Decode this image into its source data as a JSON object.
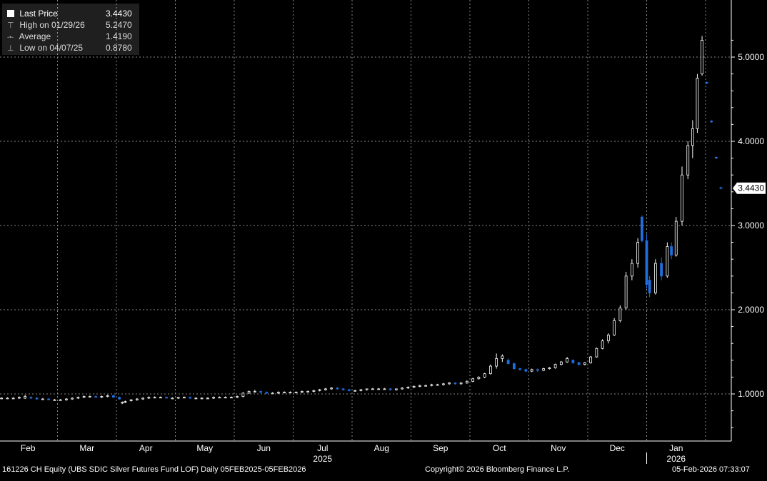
{
  "colors": {
    "background": "#000000",
    "grid": "#8a8a8a",
    "up_candle": "#ffffff",
    "down_candle": "#1f6fe0",
    "text": "#ffffff"
  },
  "legend": {
    "items": [
      {
        "label": "Last Price",
        "value": "3.4430",
        "icon": "filled-square-icon"
      },
      {
        "label": "High on 01/29/26",
        "value": "5.2470",
        "icon": "high-marker-icon"
      },
      {
        "label": "Average",
        "value": "1.4190",
        "icon": "average-line-icon"
      },
      {
        "label": "Low on 04/07/25",
        "value": "0.8780",
        "icon": "low-marker-icon"
      }
    ]
  },
  "last_price_tag": "3.4430",
  "footer": {
    "left": "161226 CH Equity (UBS SDIC Silver Futures Fund LOF) Daily 05FEB2025-05FEB2026",
    "center": "Copyright© 2026 Bloomberg Finance L.P.",
    "right": "05-Feb-2026 07:33:07"
  },
  "chart_data": {
    "type": "candlestick",
    "title": "161226 CH Equity (UBS SDIC Silver Futures Fund LOF) Daily",
    "x_range": [
      "2025-02-05",
      "2026-02-05"
    ],
    "y_range": [
      0.5,
      5.5
    ],
    "y_ticks": [
      "1.0000",
      "2.0000",
      "3.0000",
      "4.0000",
      "5.0000"
    ],
    "y_tick_values": [
      1,
      2,
      3,
      4,
      5
    ],
    "x_month_labels": [
      "Feb",
      "Mar",
      "Apr",
      "May",
      "Jun",
      "Jul",
      "Aug",
      "Sep",
      "Oct",
      "Nov",
      "Dec",
      "Jan"
    ],
    "x_month_positions": [
      0.5,
      1.5,
      2.5,
      3.5,
      4.5,
      5.5,
      6.5,
      7.5,
      8.5,
      9.5,
      10.5,
      11.5
    ],
    "x_gridlines": [
      1,
      2,
      3,
      4,
      5,
      6,
      7,
      8,
      9,
      10,
      11,
      12
    ],
    "year_labels": [
      {
        "label": "2025",
        "pos": 5.5
      },
      {
        "label": "2026",
        "pos": 11.5
      }
    ],
    "year_divider": 11,
    "last_price": 3.443,
    "high": 5.247,
    "average": 1.419,
    "low": 0.878,
    "candles": [
      {
        "t": 0.05,
        "o": 0.95,
        "h": 0.96,
        "l": 0.94,
        "c": 0.95
      },
      {
        "t": 0.15,
        "o": 0.95,
        "h": 0.96,
        "l": 0.94,
        "c": 0.95
      },
      {
        "t": 0.25,
        "o": 0.95,
        "h": 0.96,
        "l": 0.94,
        "c": 0.95
      },
      {
        "t": 0.35,
        "o": 0.95,
        "h": 0.97,
        "l": 0.94,
        "c": 0.96
      },
      {
        "t": 0.45,
        "o": 0.95,
        "h": 0.99,
        "l": 0.94,
        "c": 0.97
      },
      {
        "t": 0.55,
        "o": 0.96,
        "h": 0.97,
        "l": 0.94,
        "c": 0.95
      },
      {
        "t": 0.65,
        "o": 0.95,
        "h": 0.96,
        "l": 0.93,
        "c": 0.94
      },
      {
        "t": 0.75,
        "o": 0.94,
        "h": 0.95,
        "l": 0.93,
        "c": 0.94
      },
      {
        "t": 0.85,
        "o": 0.94,
        "h": 0.95,
        "l": 0.93,
        "c": 0.93
      },
      {
        "t": 0.95,
        "o": 0.93,
        "h": 0.94,
        "l": 0.92,
        "c": 0.93
      },
      {
        "t": 1.05,
        "o": 0.93,
        "h": 0.94,
        "l": 0.92,
        "c": 0.93
      },
      {
        "t": 1.15,
        "o": 0.93,
        "h": 0.95,
        "l": 0.92,
        "c": 0.94
      },
      {
        "t": 1.25,
        "o": 0.94,
        "h": 0.96,
        "l": 0.93,
        "c": 0.95
      },
      {
        "t": 1.35,
        "o": 0.95,
        "h": 0.97,
        "l": 0.94,
        "c": 0.96
      },
      {
        "t": 1.45,
        "o": 0.96,
        "h": 0.98,
        "l": 0.95,
        "c": 0.97
      },
      {
        "t": 1.55,
        "o": 0.97,
        "h": 0.98,
        "l": 0.96,
        "c": 0.97
      },
      {
        "t": 1.65,
        "o": 0.97,
        "h": 0.98,
        "l": 0.96,
        "c": 0.96
      },
      {
        "t": 1.75,
        "o": 0.96,
        "h": 0.98,
        "l": 0.95,
        "c": 0.97
      },
      {
        "t": 1.85,
        "o": 0.97,
        "h": 0.99,
        "l": 0.96,
        "c": 0.98
      },
      {
        "t": 1.95,
        "o": 0.98,
        "h": 0.99,
        "l": 0.96,
        "c": 0.96
      },
      {
        "t": 2.05,
        "o": 0.96,
        "h": 0.97,
        "l": 0.93,
        "c": 0.94
      },
      {
        "t": 2.1,
        "o": 0.9,
        "h": 0.91,
        "l": 0.88,
        "c": 0.9
      },
      {
        "t": 2.15,
        "o": 0.9,
        "h": 0.92,
        "l": 0.89,
        "c": 0.91
      },
      {
        "t": 2.25,
        "o": 0.92,
        "h": 0.94,
        "l": 0.91,
        "c": 0.93
      },
      {
        "t": 2.35,
        "o": 0.93,
        "h": 0.95,
        "l": 0.92,
        "c": 0.94
      },
      {
        "t": 2.45,
        "o": 0.94,
        "h": 0.96,
        "l": 0.93,
        "c": 0.95
      },
      {
        "t": 2.55,
        "o": 0.95,
        "h": 0.97,
        "l": 0.94,
        "c": 0.96
      },
      {
        "t": 2.65,
        "o": 0.96,
        "h": 0.97,
        "l": 0.95,
        "c": 0.96
      },
      {
        "t": 2.75,
        "o": 0.96,
        "h": 0.97,
        "l": 0.95,
        "c": 0.96
      },
      {
        "t": 2.85,
        "o": 0.96,
        "h": 0.97,
        "l": 0.95,
        "c": 0.95
      },
      {
        "t": 2.95,
        "o": 0.95,
        "h": 0.96,
        "l": 0.94,
        "c": 0.95
      },
      {
        "t": 3.05,
        "o": 0.95,
        "h": 0.96,
        "l": 0.94,
        "c": 0.96
      },
      {
        "t": 3.15,
        "o": 0.96,
        "h": 0.97,
        "l": 0.95,
        "c": 0.96
      },
      {
        "t": 3.25,
        "o": 0.96,
        "h": 0.97,
        "l": 0.94,
        "c": 0.95
      },
      {
        "t": 3.35,
        "o": 0.95,
        "h": 0.96,
        "l": 0.94,
        "c": 0.95
      },
      {
        "t": 3.45,
        "o": 0.95,
        "h": 0.96,
        "l": 0.94,
        "c": 0.95
      },
      {
        "t": 3.55,
        "o": 0.95,
        "h": 0.96,
        "l": 0.94,
        "c": 0.95
      },
      {
        "t": 3.65,
        "o": 0.95,
        "h": 0.97,
        "l": 0.94,
        "c": 0.96
      },
      {
        "t": 3.75,
        "o": 0.96,
        "h": 0.97,
        "l": 0.95,
        "c": 0.96
      },
      {
        "t": 3.85,
        "o": 0.96,
        "h": 0.97,
        "l": 0.95,
        "c": 0.96
      },
      {
        "t": 3.95,
        "o": 0.96,
        "h": 0.97,
        "l": 0.95,
        "c": 0.96
      },
      {
        "t": 4.05,
        "o": 0.96,
        "h": 0.98,
        "l": 0.95,
        "c": 0.97
      },
      {
        "t": 4.15,
        "o": 0.97,
        "h": 1.02,
        "l": 0.96,
        "c": 1.01
      },
      {
        "t": 4.25,
        "o": 1.01,
        "h": 1.04,
        "l": 1.0,
        "c": 1.03
      },
      {
        "t": 4.35,
        "o": 1.03,
        "h": 1.05,
        "l": 1.02,
        "c": 1.03
      },
      {
        "t": 4.45,
        "o": 1.03,
        "h": 1.04,
        "l": 1.01,
        "c": 1.02
      },
      {
        "t": 4.55,
        "o": 1.02,
        "h": 1.03,
        "l": 1.0,
        "c": 1.01
      },
      {
        "t": 4.65,
        "o": 1.01,
        "h": 1.02,
        "l": 1.0,
        "c": 1.01
      },
      {
        "t": 4.75,
        "o": 1.01,
        "h": 1.03,
        "l": 1.0,
        "c": 1.02
      },
      {
        "t": 4.85,
        "o": 1.02,
        "h": 1.03,
        "l": 1.01,
        "c": 1.02
      },
      {
        "t": 4.95,
        "o": 1.02,
        "h": 1.03,
        "l": 1.01,
        "c": 1.02
      },
      {
        "t": 5.05,
        "o": 1.02,
        "h": 1.03,
        "l": 1.01,
        "c": 1.02
      },
      {
        "t": 5.15,
        "o": 1.02,
        "h": 1.04,
        "l": 1.01,
        "c": 1.03
      },
      {
        "t": 5.25,
        "o": 1.03,
        "h": 1.04,
        "l": 1.02,
        "c": 1.03
      },
      {
        "t": 5.35,
        "o": 1.03,
        "h": 1.05,
        "l": 1.02,
        "c": 1.04
      },
      {
        "t": 5.45,
        "o": 1.04,
        "h": 1.06,
        "l": 1.03,
        "c": 1.05
      },
      {
        "t": 5.55,
        "o": 1.05,
        "h": 1.07,
        "l": 1.04,
        "c": 1.06
      },
      {
        "t": 5.65,
        "o": 1.06,
        "h": 1.08,
        "l": 1.05,
        "c": 1.07
      },
      {
        "t": 5.75,
        "o": 1.07,
        "h": 1.08,
        "l": 1.05,
        "c": 1.06
      },
      {
        "t": 5.85,
        "o": 1.06,
        "h": 1.07,
        "l": 1.04,
        "c": 1.05
      },
      {
        "t": 5.95,
        "o": 1.05,
        "h": 1.06,
        "l": 1.03,
        "c": 1.04
      },
      {
        "t": 6.05,
        "o": 1.04,
        "h": 1.05,
        "l": 1.03,
        "c": 1.04
      },
      {
        "t": 6.15,
        "o": 1.04,
        "h": 1.06,
        "l": 1.03,
        "c": 1.05
      },
      {
        "t": 6.25,
        "o": 1.05,
        "h": 1.06,
        "l": 1.04,
        "c": 1.06
      },
      {
        "t": 6.35,
        "o": 1.06,
        "h": 1.07,
        "l": 1.05,
        "c": 1.06
      },
      {
        "t": 6.45,
        "o": 1.06,
        "h": 1.07,
        "l": 1.05,
        "c": 1.06
      },
      {
        "t": 6.55,
        "o": 1.06,
        "h": 1.07,
        "l": 1.05,
        "c": 1.06
      },
      {
        "t": 6.65,
        "o": 1.06,
        "h": 1.07,
        "l": 1.04,
        "c": 1.05
      },
      {
        "t": 6.75,
        "o": 1.05,
        "h": 1.06,
        "l": 1.04,
        "c": 1.06
      },
      {
        "t": 6.85,
        "o": 1.06,
        "h": 1.08,
        "l": 1.05,
        "c": 1.07
      },
      {
        "t": 6.95,
        "o": 1.07,
        "h": 1.09,
        "l": 1.06,
        "c": 1.08
      },
      {
        "t": 7.05,
        "o": 1.08,
        "h": 1.1,
        "l": 1.07,
        "c": 1.09
      },
      {
        "t": 7.15,
        "o": 1.09,
        "h": 1.11,
        "l": 1.08,
        "c": 1.1
      },
      {
        "t": 7.25,
        "o": 1.1,
        "h": 1.11,
        "l": 1.09,
        "c": 1.1
      },
      {
        "t": 7.35,
        "o": 1.1,
        "h": 1.12,
        "l": 1.09,
        "c": 1.11
      },
      {
        "t": 7.45,
        "o": 1.11,
        "h": 1.12,
        "l": 1.1,
        "c": 1.11
      },
      {
        "t": 7.55,
        "o": 1.11,
        "h": 1.13,
        "l": 1.1,
        "c": 1.12
      },
      {
        "t": 7.65,
        "o": 1.12,
        "h": 1.14,
        "l": 1.11,
        "c": 1.13
      },
      {
        "t": 7.75,
        "o": 1.13,
        "h": 1.14,
        "l": 1.11,
        "c": 1.12
      },
      {
        "t": 7.85,
        "o": 1.12,
        "h": 1.14,
        "l": 1.11,
        "c": 1.13
      },
      {
        "t": 7.95,
        "o": 1.13,
        "h": 1.16,
        "l": 1.12,
        "c": 1.15
      },
      {
        "t": 8.05,
        "o": 1.15,
        "h": 1.19,
        "l": 1.14,
        "c": 1.18
      },
      {
        "t": 8.15,
        "o": 1.18,
        "h": 1.21,
        "l": 1.17,
        "c": 1.2
      },
      {
        "t": 8.25,
        "o": 1.2,
        "h": 1.25,
        "l": 1.19,
        "c": 1.24
      },
      {
        "t": 8.35,
        "o": 1.24,
        "h": 1.35,
        "l": 1.23,
        "c": 1.33
      },
      {
        "t": 8.45,
        "o": 1.33,
        "h": 1.48,
        "l": 1.3,
        "c": 1.42
      },
      {
        "t": 8.55,
        "o": 1.42,
        "h": 1.47,
        "l": 1.38,
        "c": 1.45
      },
      {
        "t": 8.65,
        "o": 1.4,
        "h": 1.42,
        "l": 1.35,
        "c": 1.36
      },
      {
        "t": 8.75,
        "o": 1.36,
        "h": 1.37,
        "l": 1.29,
        "c": 1.3
      },
      {
        "t": 8.85,
        "o": 1.3,
        "h": 1.31,
        "l": 1.28,
        "c": 1.29
      },
      {
        "t": 8.95,
        "o": 1.29,
        "h": 1.3,
        "l": 1.26,
        "c": 1.27
      },
      {
        "t": 9.05,
        "o": 1.27,
        "h": 1.3,
        "l": 1.26,
        "c": 1.29
      },
      {
        "t": 9.15,
        "o": 1.29,
        "h": 1.3,
        "l": 1.26,
        "c": 1.28
      },
      {
        "t": 9.25,
        "o": 1.28,
        "h": 1.31,
        "l": 1.27,
        "c": 1.3
      },
      {
        "t": 9.35,
        "o": 1.3,
        "h": 1.32,
        "l": 1.29,
        "c": 1.31
      },
      {
        "t": 9.45,
        "o": 1.31,
        "h": 1.36,
        "l": 1.3,
        "c": 1.35
      },
      {
        "t": 9.55,
        "o": 1.35,
        "h": 1.39,
        "l": 1.34,
        "c": 1.38
      },
      {
        "t": 9.65,
        "o": 1.38,
        "h": 1.44,
        "l": 1.37,
        "c": 1.42
      },
      {
        "t": 9.75,
        "o": 1.4,
        "h": 1.41,
        "l": 1.36,
        "c": 1.37
      },
      {
        "t": 9.85,
        "o": 1.37,
        "h": 1.38,
        "l": 1.34,
        "c": 1.35
      },
      {
        "t": 9.95,
        "o": 1.35,
        "h": 1.38,
        "l": 1.34,
        "c": 1.37
      },
      {
        "t": 10.05,
        "o": 1.37,
        "h": 1.45,
        "l": 1.36,
        "c": 1.44
      },
      {
        "t": 10.15,
        "o": 1.44,
        "h": 1.55,
        "l": 1.43,
        "c": 1.54
      },
      {
        "t": 10.25,
        "o": 1.54,
        "h": 1.65,
        "l": 1.53,
        "c": 1.63
      },
      {
        "t": 10.35,
        "o": 1.63,
        "h": 1.72,
        "l": 1.6,
        "c": 1.7
      },
      {
        "t": 10.45,
        "o": 1.7,
        "h": 1.9,
        "l": 1.69,
        "c": 1.87
      },
      {
        "t": 10.55,
        "o": 1.87,
        "h": 2.05,
        "l": 1.85,
        "c": 2.02
      },
      {
        "t": 10.65,
        "o": 2.02,
        "h": 2.45,
        "l": 2.0,
        "c": 2.4
      },
      {
        "t": 10.75,
        "o": 2.4,
        "h": 2.6,
        "l": 2.35,
        "c": 2.55
      },
      {
        "t": 10.85,
        "o": 2.55,
        "h": 2.85,
        "l": 2.5,
        "c": 2.8
      },
      {
        "t": 10.92,
        "o": 3.1,
        "h": 3.12,
        "l": 2.8,
        "c": 2.82
      },
      {
        "t": 11.0,
        "o": 2.82,
        "h": 2.9,
        "l": 2.25,
        "c": 2.3
      },
      {
        "t": 11.05,
        "o": 2.35,
        "h": 2.4,
        "l": 2.15,
        "c": 2.2
      },
      {
        "t": 11.15,
        "o": 2.2,
        "h": 2.6,
        "l": 2.18,
        "c": 2.55
      },
      {
        "t": 11.25,
        "o": 2.55,
        "h": 2.62,
        "l": 2.35,
        "c": 2.4
      },
      {
        "t": 11.35,
        "o": 2.4,
        "h": 2.8,
        "l": 2.38,
        "c": 2.75
      },
      {
        "t": 11.42,
        "o": 2.75,
        "h": 2.8,
        "l": 2.6,
        "c": 2.65
      },
      {
        "t": 11.5,
        "o": 2.65,
        "h": 3.1,
        "l": 2.63,
        "c": 3.05
      },
      {
        "t": 11.6,
        "o": 3.05,
        "h": 3.7,
        "l": 3.0,
        "c": 3.6
      },
      {
        "t": 11.7,
        "o": 3.6,
        "h": 4.0,
        "l": 3.55,
        "c": 3.95
      },
      {
        "t": 11.78,
        "o": 3.95,
        "h": 4.25,
        "l": 3.8,
        "c": 4.15
      },
      {
        "t": 11.86,
        "o": 4.15,
        "h": 4.8,
        "l": 4.1,
        "c": 4.75
      },
      {
        "t": 11.94,
        "o": 4.8,
        "h": 5.25,
        "l": 4.78,
        "c": 5.2
      },
      {
        "t": 12.02,
        "o": 4.7,
        "h": 4.71,
        "l": 4.68,
        "c": 4.69
      },
      {
        "t": 12.1,
        "o": 4.24,
        "h": 4.25,
        "l": 4.22,
        "c": 4.23
      },
      {
        "t": 12.18,
        "o": 3.81,
        "h": 3.82,
        "l": 3.79,
        "c": 3.8
      },
      {
        "t": 12.26,
        "o": 3.45,
        "h": 3.46,
        "l": 3.43,
        "c": 3.443
      }
    ]
  }
}
